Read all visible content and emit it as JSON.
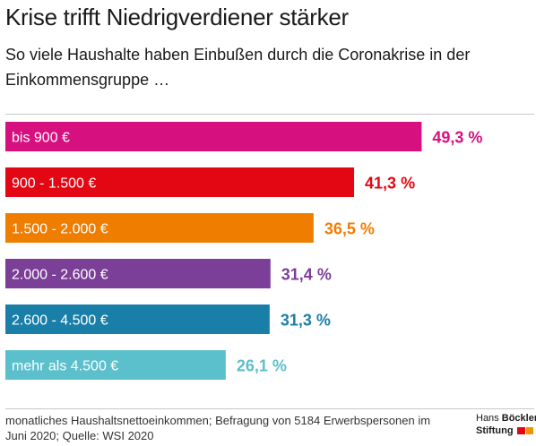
{
  "header": {
    "title": "Krise trifft Niedrigverdiener stärker",
    "subtitle": "So viele Haushalte haben Einbußen durch die Coronakrise in der Einkommensgruppe …"
  },
  "chart_data": {
    "type": "bar",
    "orientation": "horizontal",
    "categories": [
      "bis 900 €",
      "900 - 1.500 €",
      "1.500 - 2.000 €",
      "2.000 - 2.600 €",
      "2.600 - 4.500 €",
      "mehr als 4.500 €"
    ],
    "values": [
      49.3,
      41.3,
      36.5,
      31.4,
      31.3,
      26.1
    ],
    "value_labels": [
      "49,3 %",
      "41,3 %",
      "36,5 %",
      "31,4 %",
      "31,3 %",
      "26,1 %"
    ],
    "colors": [
      "#d6107f",
      "#e30613",
      "#ef7d00",
      "#7b3f98",
      "#1a7fa8",
      "#5bbfcc"
    ],
    "grid": false,
    "legend": "none"
  },
  "footer": {
    "note": "monatliches Haushaltsnettoeinkommen; Befragung von 5184 Erwerbspersonen im Juni 2020; Quelle: WSI 2020",
    "logo_line1_a": "Hans",
    "logo_line1_b": "Böckler",
    "logo_line2": "Stiftung",
    "logo_colors": [
      "#e30613",
      "#f39200"
    ]
  }
}
